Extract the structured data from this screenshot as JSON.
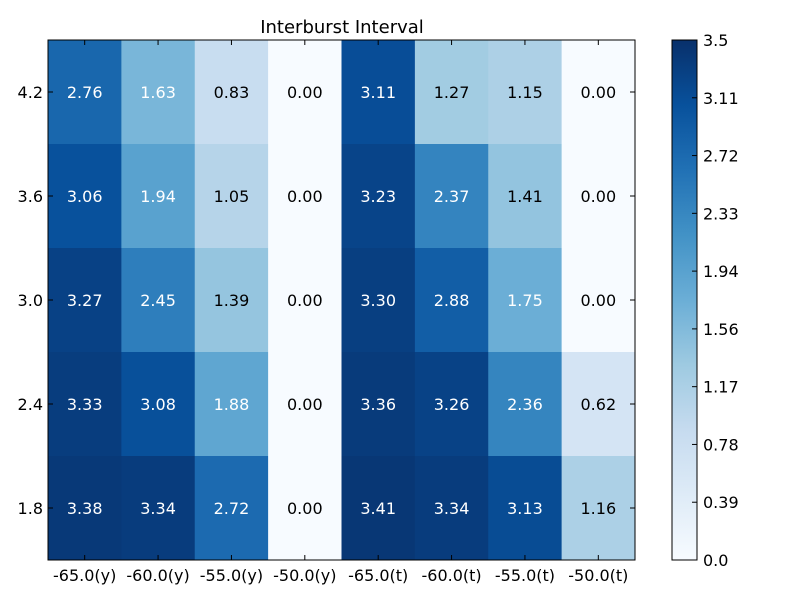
{
  "chart_data": {
    "type": "heatmap",
    "title": "Interburst Interval",
    "x_categories": [
      "-65.0(y)",
      "-60.0(y)",
      "-55.0(y)",
      "-50.0(y)",
      "-65.0(t)",
      "-60.0(t)",
      "-55.0(t)",
      "-50.0(t)"
    ],
    "y_categories": [
      "4.2",
      "3.6",
      "3.0",
      "2.4",
      "1.8"
    ],
    "values": [
      [
        2.76,
        1.63,
        0.83,
        0.0,
        3.11,
        1.27,
        1.15,
        0.0
      ],
      [
        3.06,
        1.94,
        1.05,
        0.0,
        3.23,
        2.37,
        1.41,
        0.0
      ],
      [
        3.27,
        2.45,
        1.39,
        0.0,
        3.3,
        2.88,
        1.75,
        0.0
      ],
      [
        3.33,
        3.08,
        1.88,
        0.0,
        3.36,
        3.26,
        2.36,
        0.62
      ],
      [
        3.38,
        3.34,
        2.72,
        0.0,
        3.41,
        3.34,
        3.13,
        1.16
      ]
    ],
    "colorscale": "Blues",
    "colorbar": {
      "range": [
        0.0,
        3.5
      ],
      "ticks": [
        "0.0",
        "0.39",
        "0.78",
        "1.17",
        "1.56",
        "1.94",
        "2.33",
        "2.72",
        "3.11",
        "3.5"
      ]
    }
  }
}
